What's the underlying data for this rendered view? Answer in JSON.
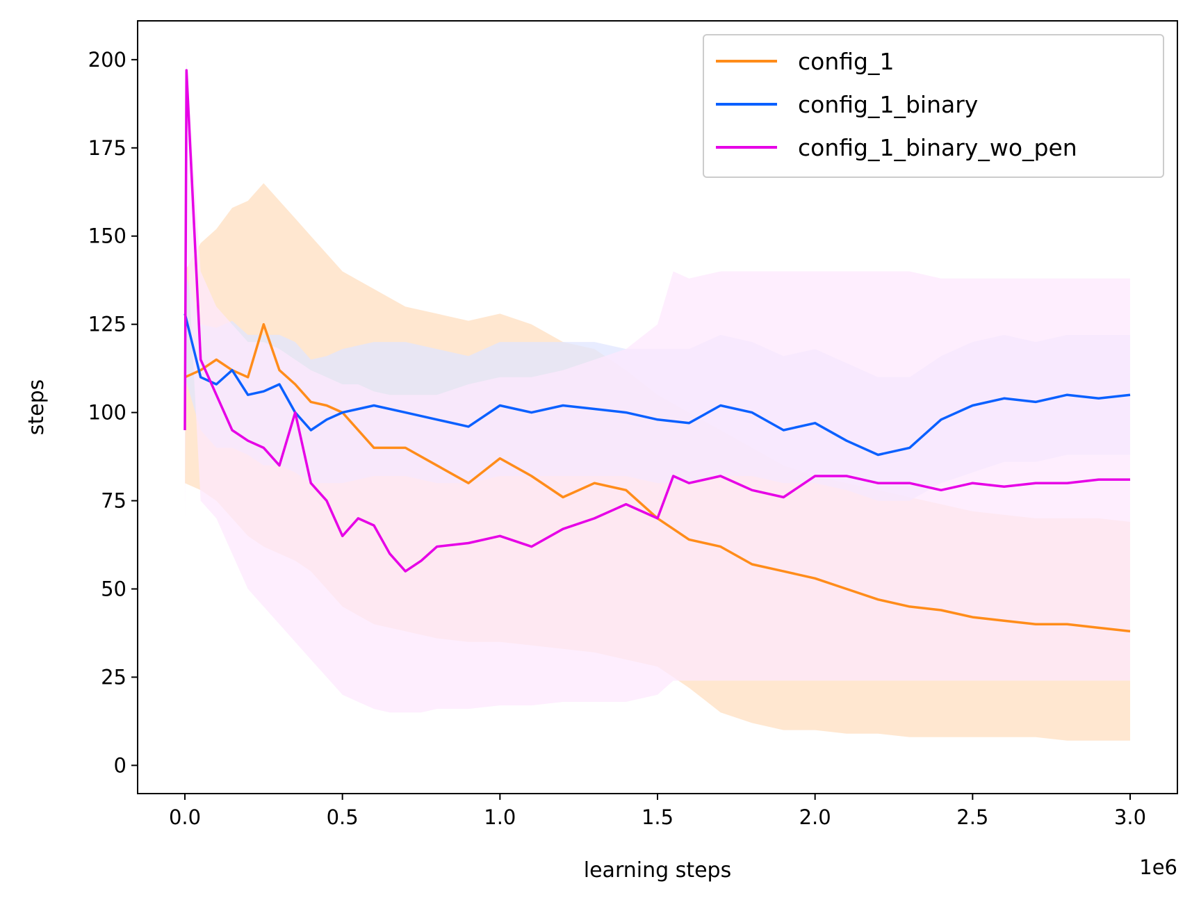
{
  "chart_data": {
    "type": "line",
    "title": "",
    "xlabel": "learning steps",
    "ylabel": "steps",
    "x_offset_label": "1e6",
    "xlim": [
      -0.15,
      3.15
    ],
    "ylim": [
      -8,
      211
    ],
    "x_ticks": [
      0.0,
      0.5,
      1.0,
      1.5,
      2.0,
      2.5,
      3.0
    ],
    "x_tick_labels": [
      "0.0",
      "0.5",
      "1.0",
      "1.5",
      "2.0",
      "2.5",
      "3.0"
    ],
    "y_ticks": [
      0,
      25,
      50,
      75,
      100,
      125,
      150,
      175,
      200
    ],
    "y_tick_labels": [
      "0",
      "25",
      "50",
      "75",
      "100",
      "125",
      "150",
      "175",
      "200"
    ],
    "grid": false,
    "legend_position": "top-right",
    "series": [
      {
        "name": "config_1",
        "color": "#ff8c1a",
        "band_color": "#ffdfc0",
        "x": [
          0.0,
          0.05,
          0.1,
          0.15,
          0.2,
          0.25,
          0.3,
          0.35,
          0.4,
          0.45,
          0.5,
          0.6,
          0.7,
          0.8,
          0.9,
          1.0,
          1.1,
          1.2,
          1.3,
          1.4,
          1.5,
          1.6,
          1.7,
          1.8,
          1.9,
          2.0,
          2.1,
          2.2,
          2.3,
          2.4,
          2.5,
          2.6,
          2.7,
          2.8,
          2.9,
          3.0
        ],
        "y": [
          110,
          112,
          115,
          112,
          110,
          125,
          112,
          108,
          103,
          102,
          100,
          90,
          90,
          85,
          80,
          87,
          82,
          76,
          80,
          78,
          70,
          64,
          62,
          57,
          55,
          53,
          50,
          47,
          45,
          44,
          42,
          41,
          40,
          40,
          39,
          38
        ],
        "lower": [
          80,
          78,
          75,
          70,
          65,
          62,
          60,
          58,
          55,
          50,
          45,
          40,
          38,
          36,
          35,
          35,
          34,
          33,
          32,
          30,
          28,
          22,
          15,
          12,
          10,
          10,
          9,
          9,
          8,
          8,
          8,
          8,
          8,
          7,
          7,
          7
        ],
        "upper": [
          140,
          148,
          152,
          158,
          160,
          165,
          160,
          155,
          150,
          145,
          140,
          135,
          130,
          128,
          126,
          128,
          125,
          120,
          118,
          112,
          105,
          100,
          95,
          90,
          85,
          82,
          80,
          78,
          76,
          74,
          72,
          71,
          70,
          70,
          70,
          69
        ]
      },
      {
        "name": "config_1_binary",
        "color": "#0a60ff",
        "band_color": "#e0e6ff",
        "x": [
          0.0,
          0.05,
          0.1,
          0.15,
          0.2,
          0.25,
          0.3,
          0.35,
          0.4,
          0.45,
          0.5,
          0.6,
          0.7,
          0.8,
          0.9,
          1.0,
          1.1,
          1.2,
          1.3,
          1.4,
          1.5,
          1.6,
          1.7,
          1.8,
          1.9,
          2.0,
          2.1,
          2.2,
          2.3,
          2.4,
          2.5,
          2.6,
          2.7,
          2.8,
          2.9,
          3.0
        ],
        "y": [
          128,
          110,
          108,
          112,
          105,
          106,
          108,
          100,
          95,
          98,
          100,
          102,
          100,
          98,
          96,
          102,
          100,
          102,
          101,
          100,
          98,
          97,
          102,
          100,
          95,
          97,
          92,
          88,
          90,
          98,
          102,
          104,
          103,
          105,
          104,
          105
        ],
        "lower": [
          110,
          95,
          90,
          90,
          88,
          85,
          85,
          83,
          80,
          80,
          80,
          82,
          82,
          80,
          80,
          82,
          82,
          82,
          82,
          82,
          80,
          80,
          82,
          82,
          80,
          80,
          78,
          75,
          75,
          80,
          83,
          86,
          86,
          88,
          88,
          88
        ],
        "upper": [
          140,
          125,
          124,
          126,
          122,
          122,
          122,
          120,
          115,
          116,
          118,
          120,
          120,
          118,
          116,
          120,
          120,
          120,
          120,
          118,
          118,
          118,
          122,
          120,
          116,
          118,
          114,
          110,
          110,
          116,
          120,
          122,
          120,
          122,
          122,
          122
        ]
      },
      {
        "name": "config_1_binary_wo_pen",
        "color": "#e600e6",
        "band_color": "#fde8fd",
        "x": [
          0.0,
          0.005,
          0.05,
          0.1,
          0.15,
          0.2,
          0.25,
          0.3,
          0.35,
          0.4,
          0.45,
          0.5,
          0.55,
          0.6,
          0.65,
          0.7,
          0.75,
          0.8,
          0.9,
          1.0,
          1.1,
          1.2,
          1.3,
          1.4,
          1.5,
          1.55,
          1.6,
          1.7,
          1.8,
          1.9,
          2.0,
          2.1,
          2.2,
          2.3,
          2.4,
          2.5,
          2.6,
          2.7,
          2.8,
          2.9,
          3.0
        ],
        "y": [
          95,
          197,
          115,
          105,
          95,
          92,
          90,
          85,
          100,
          80,
          75,
          65,
          70,
          68,
          60,
          55,
          58,
          62,
          63,
          65,
          62,
          67,
          70,
          74,
          70,
          82,
          80,
          82,
          78,
          76,
          82,
          82,
          80,
          80,
          78,
          80,
          79,
          80,
          80,
          81,
          81
        ],
        "lower": [
          70,
          150,
          75,
          70,
          60,
          50,
          45,
          40,
          35,
          30,
          25,
          20,
          18,
          16,
          15,
          15,
          15,
          16,
          16,
          17,
          17,
          18,
          18,
          18,
          20,
          24,
          24,
          24,
          24,
          24,
          24,
          24,
          24,
          24,
          24,
          24,
          24,
          24,
          24,
          24,
          24
        ],
        "upper": [
          125,
          200,
          140,
          130,
          125,
          120,
          120,
          118,
          115,
          112,
          110,
          108,
          108,
          106,
          105,
          105,
          105,
          105,
          108,
          110,
          110,
          112,
          115,
          118,
          125,
          140,
          138,
          140,
          140,
          140,
          140,
          140,
          140,
          140,
          138,
          138,
          138,
          138,
          138,
          138,
          138
        ]
      }
    ]
  }
}
